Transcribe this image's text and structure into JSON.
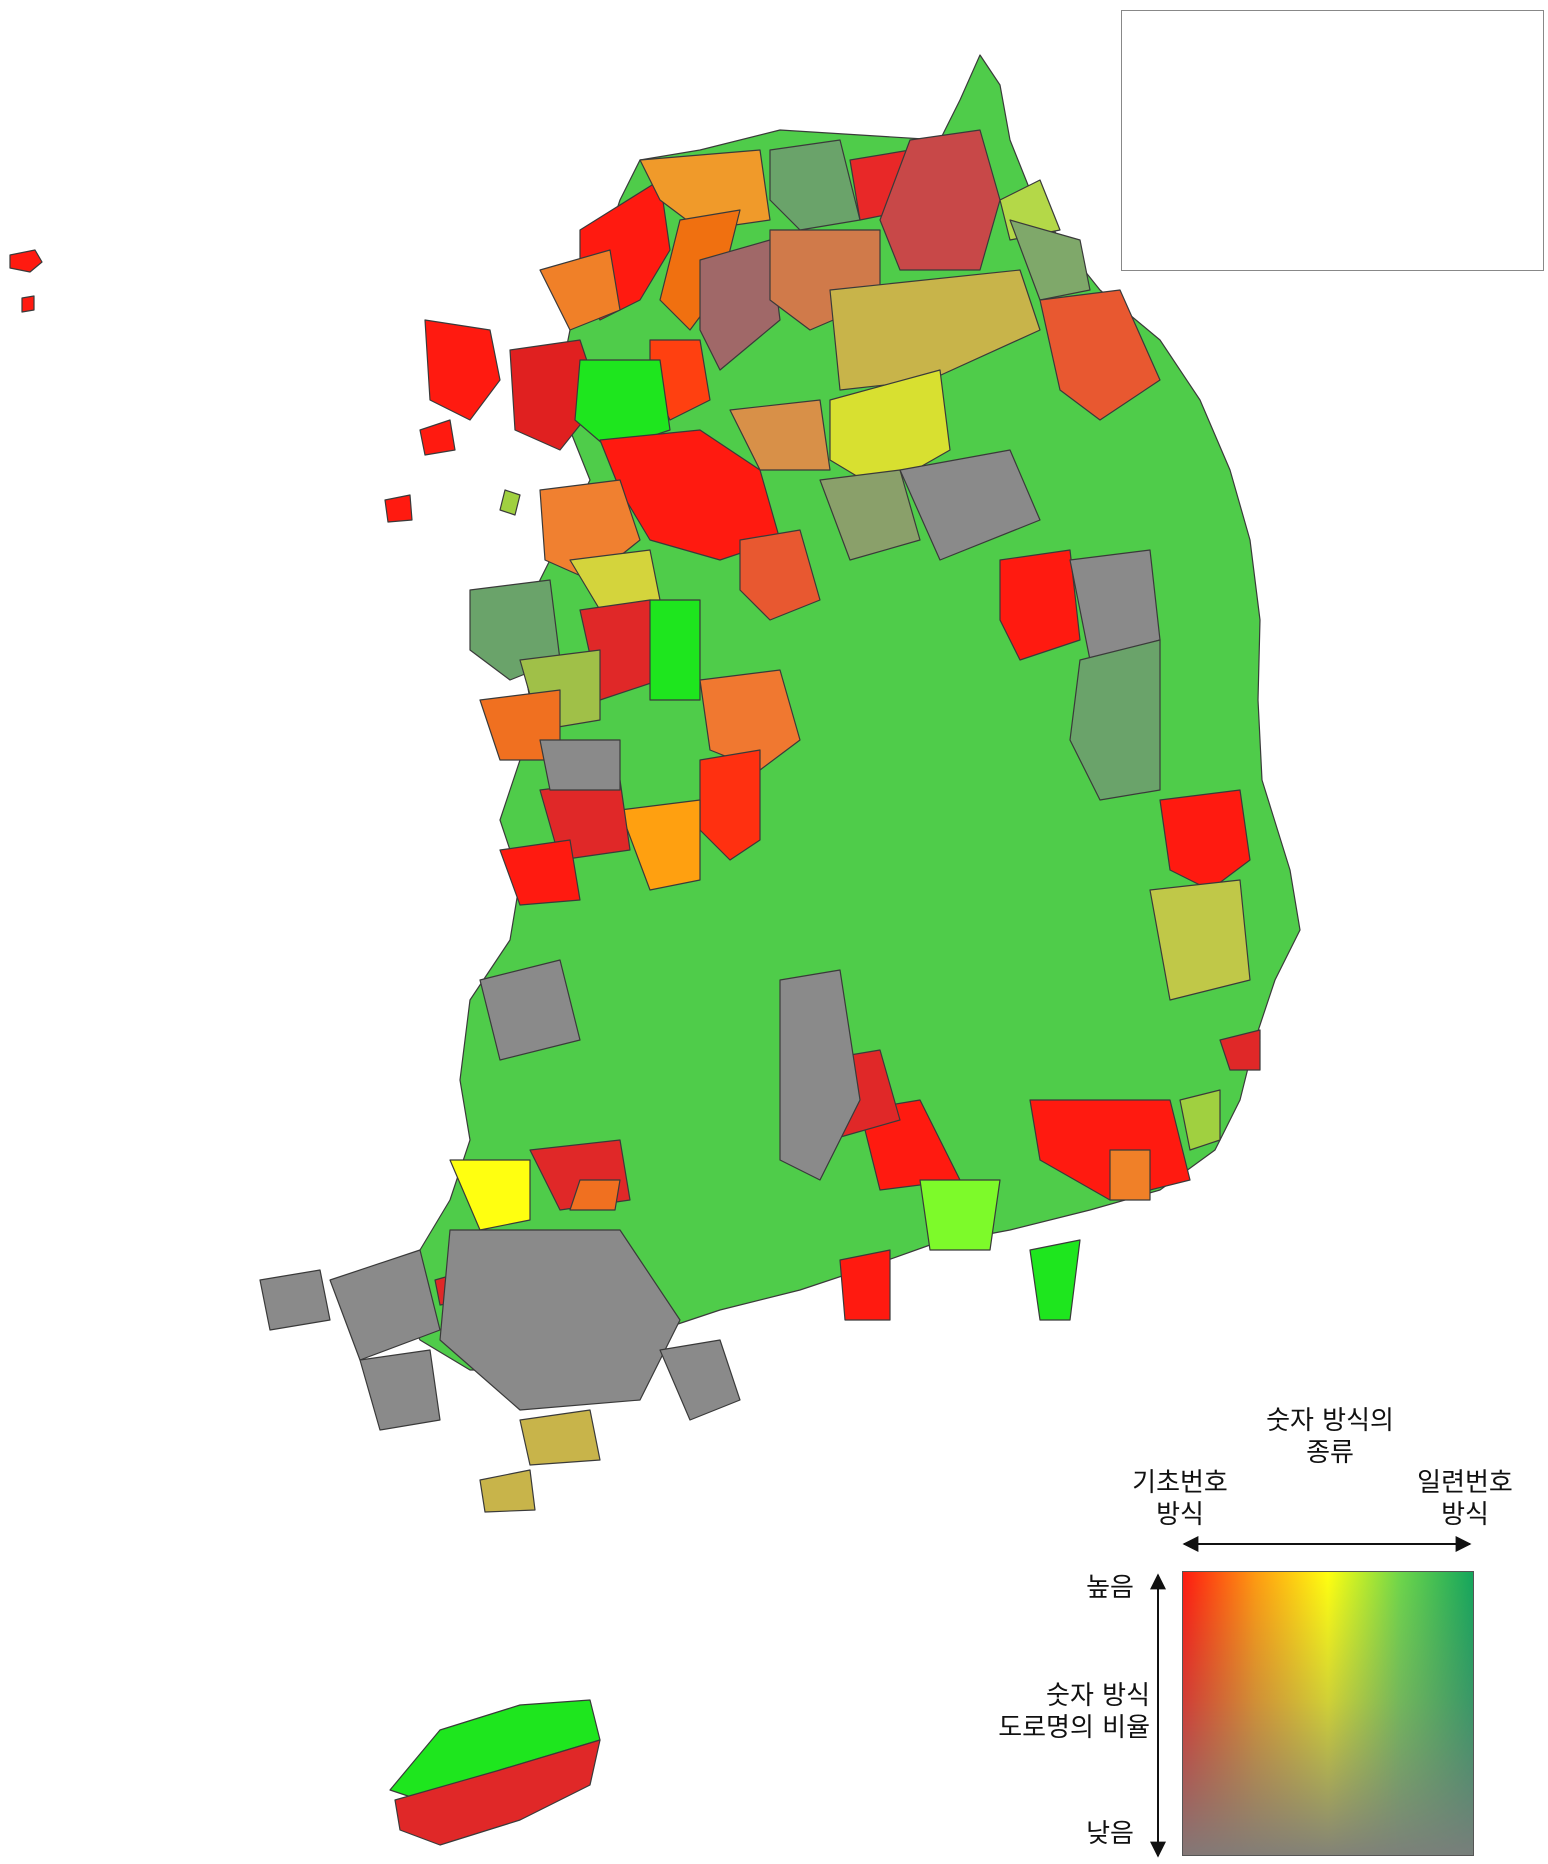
{
  "legend": {
    "top_title_line1": "숫자 방식의",
    "top_title_line2": "종류",
    "left_label_line1": "기초번호",
    "left_label_line2": "방식",
    "right_label_line1": "일련번호",
    "right_label_line2": "방식",
    "high_label": "높음",
    "low_label": "낮음",
    "vertical_title_line1": "숫자 방식",
    "vertical_title_line2": "도로명의 비율"
  },
  "colors": {
    "basic_high": "#ff1a10",
    "orange": "#f0891a",
    "yellow": "#ffff10",
    "bright_green": "#1ee61e",
    "medium_green": "#4fcc4a",
    "muted_green": "#6aa36a",
    "gray": "#8a8a8a",
    "dark_red": "#c84848",
    "khaki": "#c8b44a"
  }
}
